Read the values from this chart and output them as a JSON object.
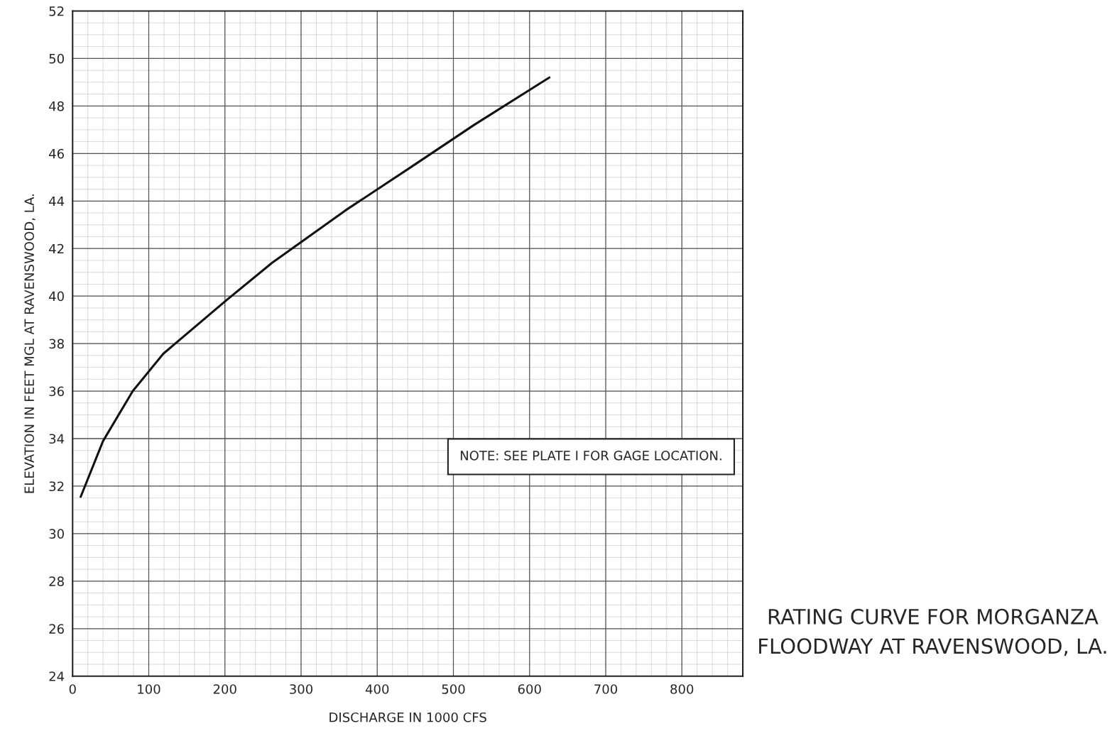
{
  "chart_data": {
    "type": "line",
    "title": "RATING CURVE FOR MORGANZA FLOODWAY AT RAVENSWOOD, LA.",
    "xlabel": "DISCHARGE IN 1000 CFS",
    "ylabel": "ELEVATION IN FEET MGL AT RAVENSWOOD, LA.",
    "annotations": [
      "NOTE: SEE PLATE I FOR GAGE LOCATION."
    ],
    "series": [
      {
        "color": "#111111",
        "x": [
          10.6,
          40,
          79,
          119,
          201,
          262,
          358,
          443,
          527,
          626
        ],
        "values": [
          31.55,
          33.9,
          36.0,
          37.57,
          39.8,
          41.4,
          43.6,
          45.4,
          47.2,
          49.2
        ]
      }
    ],
    "xlim": [
      0,
      880
    ],
    "xticks": [
      0,
      100,
      200,
      300,
      400,
      500,
      600,
      700,
      800
    ],
    "ylim": [
      24,
      52
    ],
    "yticks": [
      24,
      26,
      28,
      30,
      32,
      34,
      36,
      38,
      40,
      42,
      44,
      46,
      48,
      50,
      52
    ],
    "grid": true,
    "line_style": "solid",
    "marker": "none"
  }
}
